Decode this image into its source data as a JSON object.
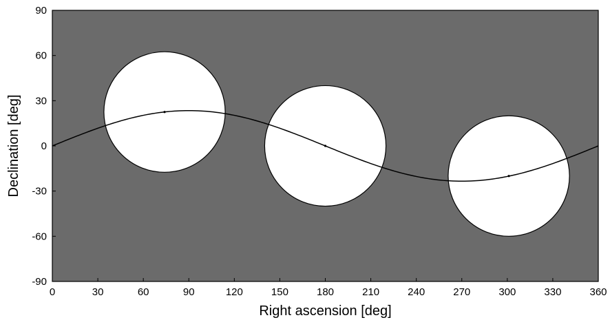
{
  "chart_data": {
    "type": "scatter",
    "title": "",
    "xlabel": "Right ascension [deg]",
    "ylabel": "Declination [deg]",
    "xlim": [
      0,
      360
    ],
    "ylim": [
      -90,
      90
    ],
    "x_ticks": [
      0,
      30,
      60,
      90,
      120,
      150,
      180,
      210,
      240,
      270,
      300,
      330,
      360
    ],
    "y_ticks": [
      -90,
      -60,
      -30,
      0,
      30,
      60,
      90
    ],
    "grid": false,
    "background_color": "#6b6b6b",
    "region_fill_color": "#ffffff",
    "curve": {
      "description_free": true,
      "amplitude_deg": 23.44,
      "x_range": [
        0,
        360
      ]
    },
    "circles": [
      {
        "center_ra": 74,
        "center_dec": 22.5,
        "radius_deg": 40
      },
      {
        "center_ra": 180,
        "center_dec": 0,
        "radius_deg": 40
      },
      {
        "center_ra": 301,
        "center_dec": -20,
        "radius_deg": 40
      }
    ]
  }
}
